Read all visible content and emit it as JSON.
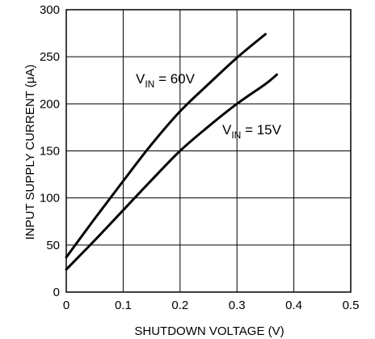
{
  "chart_data": {
    "type": "line",
    "title": "",
    "xlabel": "SHUTDOWN VOLTAGE (V)",
    "ylabel": "INPUT SUPPLY CURRENT (μA)",
    "xlim": [
      0,
      0.5
    ],
    "ylim": [
      0,
      300
    ],
    "xticks": [
      "0",
      "0.1",
      "0.2",
      "0.3",
      "0.4",
      "0.5"
    ],
    "yticks": [
      "0",
      "50",
      "100",
      "150",
      "200",
      "250",
      "300"
    ],
    "grid": true,
    "legend": "none",
    "series": [
      {
        "name": "VIN = 60V",
        "color": "#000000",
        "x": [
          0,
          0.05,
          0.1,
          0.15,
          0.2,
          0.25,
          0.3,
          0.35
        ],
        "y": [
          37,
          78,
          118,
          157,
          192,
          221,
          249,
          274
        ]
      },
      {
        "name": "VIN = 15V",
        "color": "#000000",
        "x": [
          0,
          0.05,
          0.1,
          0.15,
          0.2,
          0.25,
          0.3,
          0.35,
          0.37
        ],
        "y": [
          24,
          55,
          87,
          119,
          150,
          176,
          200,
          221,
          231
        ]
      }
    ],
    "annotations": [
      {
        "main": "V",
        "sub": "IN",
        "rest": " = 60V"
      },
      {
        "main": "V",
        "sub": "IN",
        "rest": " = 15V"
      }
    ]
  }
}
